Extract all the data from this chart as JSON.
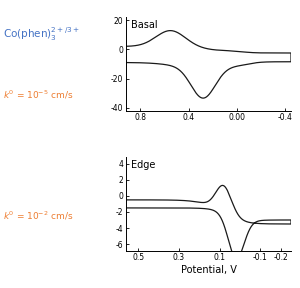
{
  "basal_label": "Basal",
  "edge_label": "Edge",
  "xlabel": "Potential, V",
  "basal_ylim": [
    -42,
    22
  ],
  "basal_yticks": [
    -40,
    -20,
    0,
    20
  ],
  "basal_xlim": [
    0.92,
    -0.45
  ],
  "basal_xticks": [
    0.8,
    0.4,
    0.0,
    -0.4
  ],
  "basal_xticklabels": [
    "0.8",
    "0.4",
    "0.00",
    "-0.4"
  ],
  "edge_ylim": [
    -6.8,
    4.8
  ],
  "edge_yticks": [
    -6,
    -4,
    -2,
    0,
    2,
    4
  ],
  "edge_xlim": [
    0.56,
    -0.25
  ],
  "edge_xticks": [
    0.5,
    0.3,
    0.1,
    -0.1,
    -0.2
  ],
  "edge_xticklabels": [
    "0.5",
    "0.3",
    "0.1",
    "-0.1",
    "-0.2"
  ],
  "text_color_title": "#4472C4",
  "text_color_k0": "#ED7D31",
  "line_color": "#1a1a1a",
  "fig_bg": "#ffffff"
}
